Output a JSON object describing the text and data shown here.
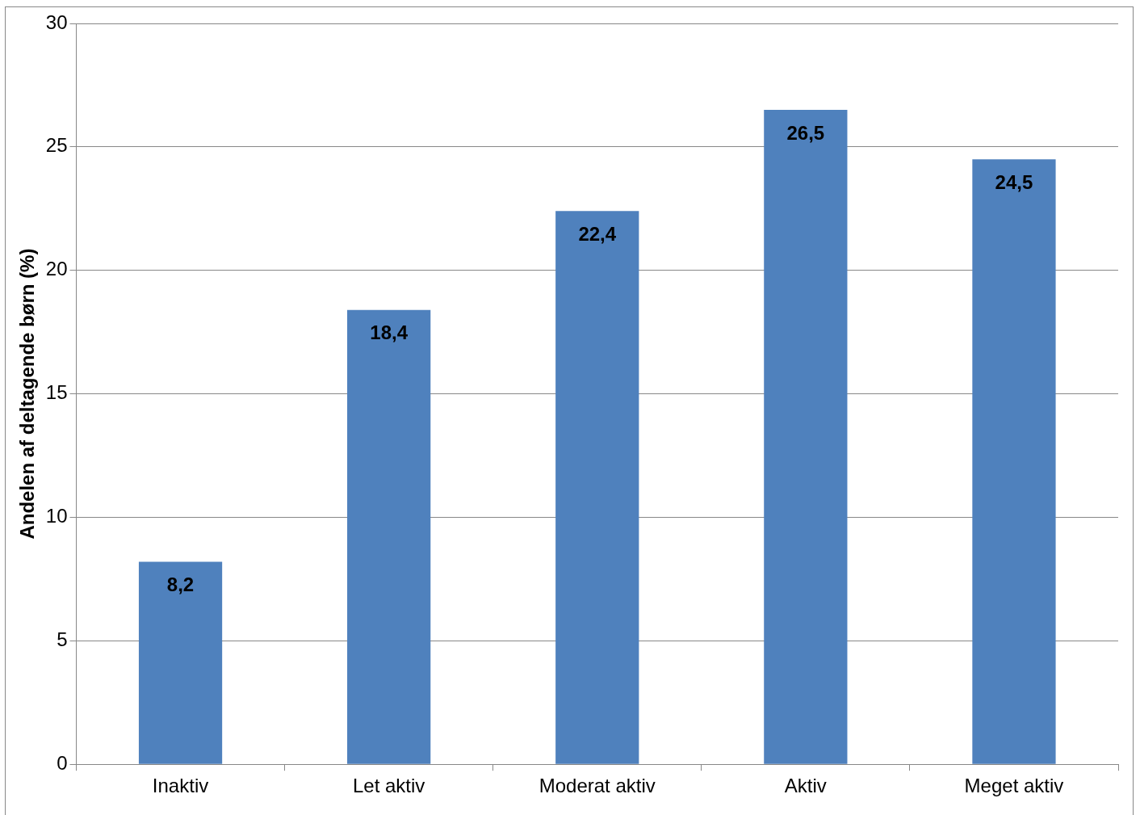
{
  "chart_data": {
    "type": "bar",
    "ylabel": "Andelen af deltagende børn (%)",
    "categories": [
      "Inaktiv",
      "Let aktiv",
      "Moderat aktiv",
      "Aktiv",
      "Meget aktiv"
    ],
    "values": [
      8.2,
      18.4,
      22.4,
      26.5,
      24.5
    ],
    "value_labels": [
      "8,2",
      "18,4",
      "22,4",
      "26,5",
      "24,5"
    ],
    "color": "#4f81bd",
    "ylim": [
      0,
      30
    ],
    "yticks": [
      0,
      5,
      10,
      15,
      20,
      25,
      30
    ],
    "grid": "y",
    "legend": false
  }
}
